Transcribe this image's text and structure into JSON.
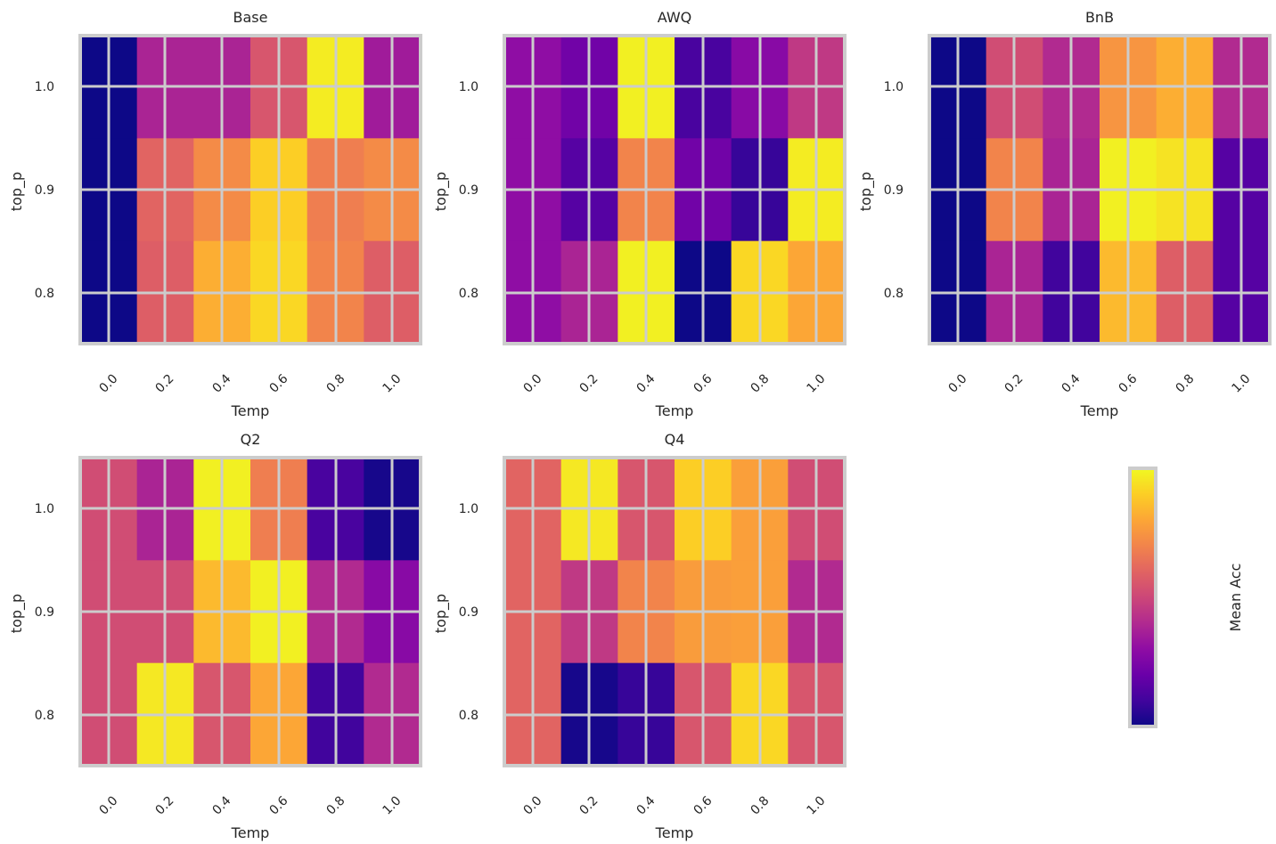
{
  "chart_data": [
    {
      "type": "heatmap",
      "title": "Base",
      "xlabel": "Temp",
      "ylabel": "top_p",
      "x_tick_labels": [
        "0.0",
        "0.2",
        "0.4",
        "0.6",
        "0.8",
        "1.0"
      ],
      "y_tick_labels": [
        "1.0",
        "0.9",
        "0.8"
      ],
      "rows": [
        "1.0",
        "0.9",
        "0.8"
      ],
      "columns": [
        "0.0",
        "0.2",
        "0.4",
        "0.6",
        "0.8",
        "1.0"
      ],
      "values": [
        [
          0.0,
          0.38,
          0.38,
          0.55,
          0.97,
          0.35
        ],
        [
          0.0,
          0.6,
          0.72,
          0.9,
          0.68,
          0.72
        ],
        [
          0.0,
          0.58,
          0.82,
          0.92,
          0.7,
          0.58
        ]
      ]
    },
    {
      "type": "heatmap",
      "title": "AWQ",
      "xlabel": "Temp",
      "ylabel": "top_p",
      "x_tick_labels": [
        "0.0",
        "0.2",
        "0.4",
        "0.6",
        "0.8",
        "1.0"
      ],
      "y_tick_labels": [
        "1.0",
        "0.9",
        "0.8"
      ],
      "rows": [
        "1.0",
        "0.9",
        "0.8"
      ],
      "columns": [
        "0.0",
        "0.2",
        "0.4",
        "0.6",
        "0.8",
        "1.0"
      ],
      "values": [
        [
          0.3,
          0.22,
          0.98,
          0.12,
          0.28,
          0.45
        ],
        [
          0.3,
          0.15,
          0.7,
          0.22,
          0.08,
          0.97
        ],
        [
          0.3,
          0.38,
          0.98,
          0.0,
          0.92,
          0.8
        ]
      ]
    },
    {
      "type": "heatmap",
      "title": "BnB",
      "xlabel": "Temp",
      "ylabel": "top_p",
      "x_tick_labels": [
        "0.0",
        "0.2",
        "0.4",
        "0.6",
        "0.8",
        "1.0"
      ],
      "y_tick_labels": [
        "1.0",
        "0.9",
        "0.8"
      ],
      "rows": [
        "1.0",
        "0.9",
        "0.8"
      ],
      "columns": [
        "0.0",
        "0.2",
        "0.4",
        "0.6",
        "0.8",
        "1.0"
      ],
      "values": [
        [
          0.0,
          0.52,
          0.4,
          0.75,
          0.82,
          0.4
        ],
        [
          0.0,
          0.7,
          0.38,
          0.98,
          0.95,
          0.15
        ],
        [
          0.0,
          0.38,
          0.1,
          0.85,
          0.58,
          0.15
        ]
      ]
    },
    {
      "type": "heatmap",
      "title": "Q2",
      "xlabel": "Temp",
      "ylabel": "top_p",
      "x_tick_labels": [
        "0.0",
        "0.2",
        "0.4",
        "0.6",
        "0.8",
        "1.0"
      ],
      "y_tick_labels": [
        "1.0",
        "0.9",
        "0.8"
      ],
      "rows": [
        "1.0",
        "0.9",
        "0.8"
      ],
      "columns": [
        "0.0",
        "0.2",
        "0.4",
        "0.6",
        "0.8",
        "1.0"
      ],
      "values": [
        [
          0.52,
          0.38,
          0.98,
          0.68,
          0.12,
          0.02
        ],
        [
          0.52,
          0.52,
          0.85,
          0.98,
          0.4,
          0.28
        ],
        [
          0.52,
          0.96,
          0.55,
          0.8,
          0.1,
          0.4
        ]
      ]
    },
    {
      "type": "heatmap",
      "title": "Q4",
      "xlabel": "Temp",
      "ylabel": "top_p",
      "x_tick_labels": [
        "0.0",
        "0.2",
        "0.4",
        "0.6",
        "0.8",
        "1.0"
      ],
      "y_tick_labels": [
        "1.0",
        "0.9",
        "0.8"
      ],
      "rows": [
        "1.0",
        "0.9",
        "0.8"
      ],
      "columns": [
        "0.0",
        "0.2",
        "0.4",
        "0.6",
        "0.8",
        "1.0"
      ],
      "values": [
        [
          0.6,
          0.96,
          0.55,
          0.9,
          0.78,
          0.52
        ],
        [
          0.6,
          0.45,
          0.7,
          0.77,
          0.78,
          0.4
        ],
        [
          0.6,
          0.02,
          0.08,
          0.55,
          0.92,
          0.55
        ]
      ]
    }
  ],
  "colorbar": {
    "label": "Mean Acc",
    "colormap": "plasma",
    "range": [
      0,
      1
    ]
  }
}
